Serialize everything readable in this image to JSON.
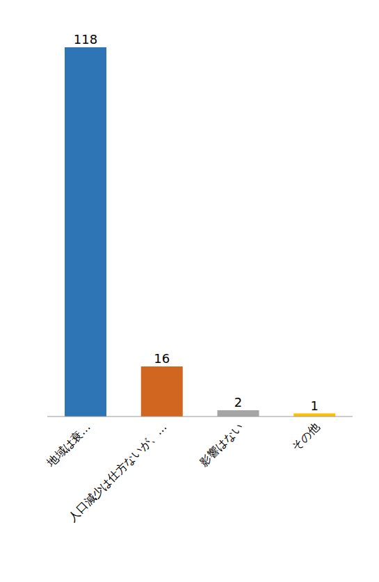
{
  "chart_data": {
    "type": "bar",
    "categories": [
      "地域は衰…",
      "人口減少は仕方ないが、…",
      "影響はない",
      "その他"
    ],
    "values": [
      118,
      16,
      2,
      1
    ],
    "colors": [
      "#2e75b6",
      "#d0661f",
      "#a5a5a5",
      "#ffc000"
    ],
    "ylim": [
      0,
      118
    ],
    "grid": false,
    "data_labels": true,
    "tick_labels": "x"
  }
}
